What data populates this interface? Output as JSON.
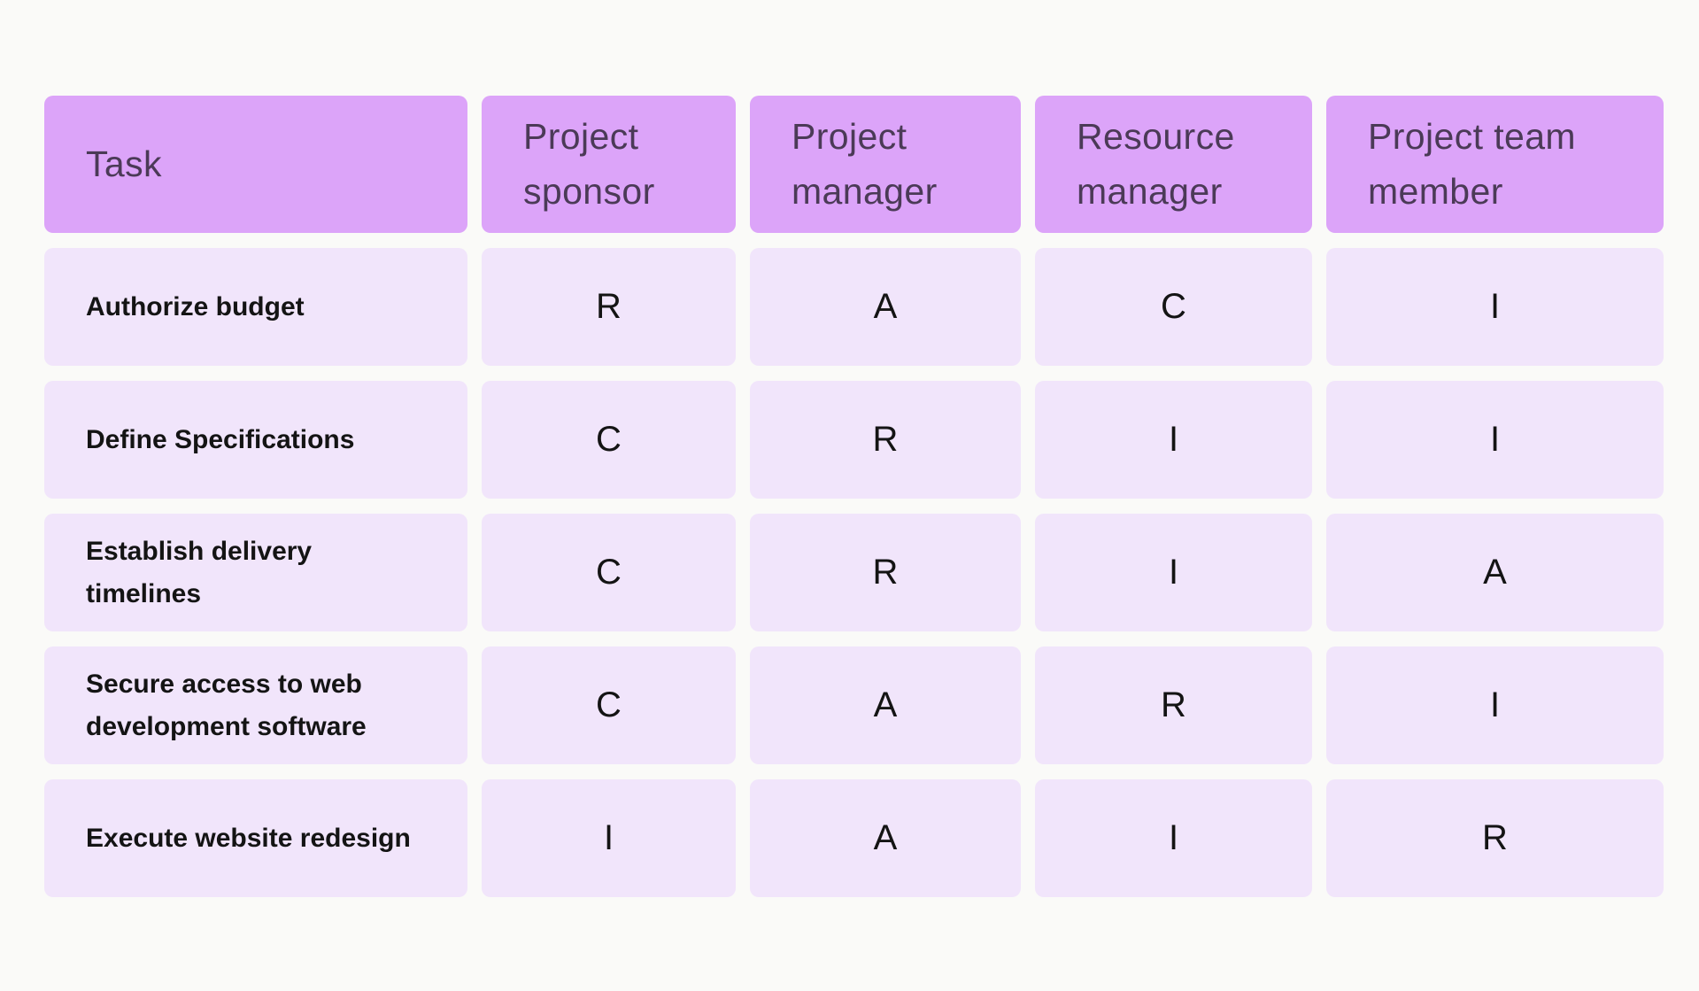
{
  "chart_data": {
    "type": "table",
    "description": "RACI responsibility assignment matrix",
    "columns": [
      "Task",
      "Project sponsor",
      "Project manager",
      "Resource manager",
      "Project team member"
    ],
    "rows": [
      {
        "task": "Authorize budget",
        "assignments": [
          "R",
          "A",
          "C",
          "I"
        ]
      },
      {
        "task": "Define Specifications",
        "assignments": [
          "C",
          "R",
          "I",
          "I"
        ]
      },
      {
        "task": "Establish delivery timelines",
        "assignments": [
          "C",
          "R",
          "I",
          "A"
        ]
      },
      {
        "task": "Secure access to web development software",
        "assignments": [
          "C",
          "A",
          "R",
          "I"
        ]
      },
      {
        "task": "Execute website redesign",
        "assignments": [
          "I",
          "A",
          "I",
          "R"
        ]
      }
    ],
    "legend_position": "none",
    "grid": false
  },
  "colors": {
    "page_bg": "#fafaf8",
    "header_bg": "#dca4f9",
    "header_text": "#4b3a57",
    "cell_bg": "#f1e5fb",
    "cell_text": "#141414"
  }
}
